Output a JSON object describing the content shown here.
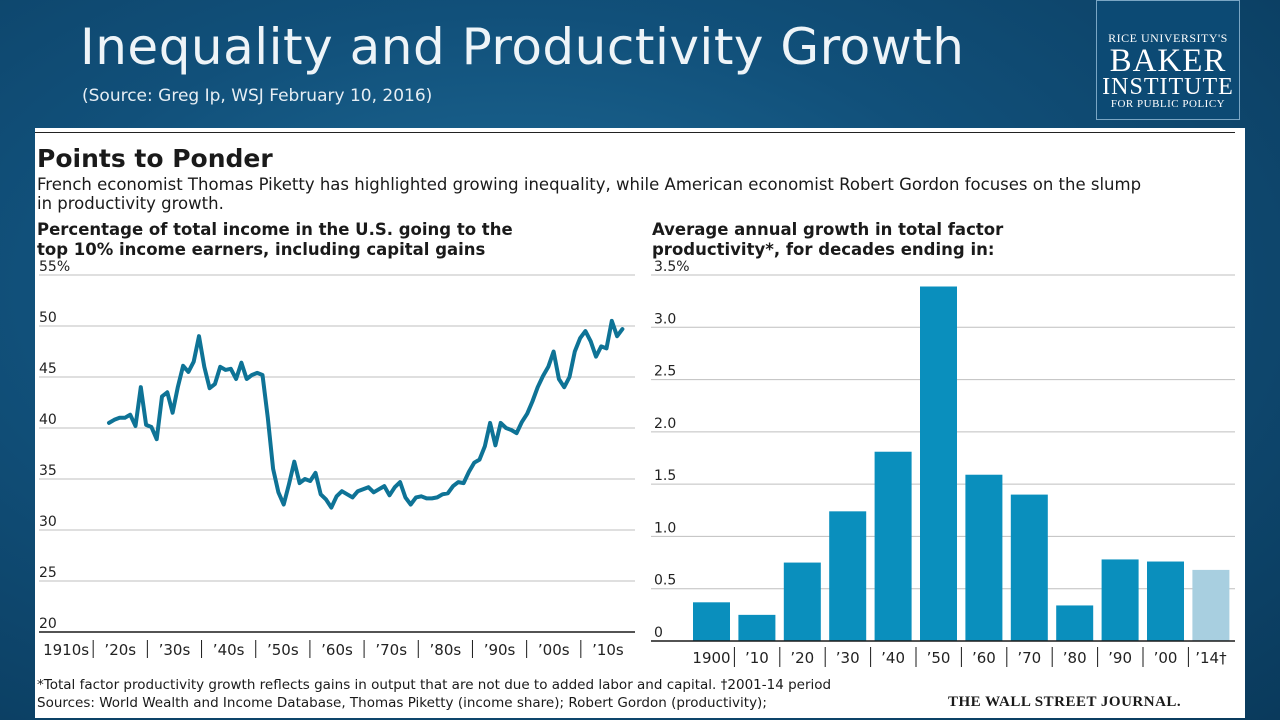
{
  "slide": {
    "title": "Inequality and Productivity Growth",
    "source": "(Source: Greg Ip, WSJ February 10, 2016)"
  },
  "logo": {
    "line1": "RICE UNIVERSITY'S",
    "line2": "BAKER",
    "line3": "INSTITUTE",
    "line4": "FOR PUBLIC POLICY"
  },
  "panel": {
    "heading": "Points to Ponder",
    "description": "French economist Thomas Piketty has highlighted growing inequality, while American economist Robert Gordon focuses on the slump in productivity growth.",
    "footnote": "*Total factor productivity growth reflects gains in output that are not due to added labor and capital.  †2001-14 period",
    "sources": "Sources: World Wealth and Income Database, Thomas Piketty (income share); Robert Gordon (productivity);",
    "publisher": "THE WALL STREET JOURNAL."
  },
  "colors": {
    "line": "#0e7396",
    "bar": "#0a8fbd",
    "bar_partial": "#a8cfe0",
    "grid": "#bfbfbf",
    "axis": "#1a1a1a"
  },
  "chart_data": [
    {
      "type": "line",
      "title_lines": [
        "Percentage of total income in the U.S. going to the",
        "top 10% income earners, including capital gains"
      ],
      "ylim": [
        20,
        55
      ],
      "ytick_values": [
        20,
        25,
        30,
        35,
        40,
        45,
        50,
        55
      ],
      "ytick_labels": [
        "20",
        "25",
        "30",
        "35",
        "40",
        "45",
        "50",
        "55%"
      ],
      "xlim": [
        1910,
        2016
      ],
      "xtick_labels": [
        "1910s",
        "’20s",
        "’30s",
        "’40s",
        "’50s",
        "’60s",
        "’70s",
        "’80s",
        "’90s",
        "’00s",
        "’10s"
      ],
      "grid": true,
      "series": [
        {
          "x": [
            1917,
            1918,
            1919,
            1920,
            1921,
            1922,
            1923,
            1924,
            1925,
            1926,
            1927,
            1928,
            1929,
            1930,
            1931,
            1932,
            1933,
            1934,
            1935,
            1936,
            1937,
            1938,
            1939,
            1940,
            1941,
            1942,
            1943,
            1944,
            1945,
            1946,
            1947,
            1948,
            1949,
            1950,
            1951,
            1952,
            1953,
            1954,
            1955,
            1956,
            1957,
            1958,
            1959,
            1960,
            1961,
            1962,
            1963,
            1964,
            1965,
            1966,
            1967,
            1968,
            1969,
            1970,
            1971,
            1972,
            1973,
            1974,
            1975,
            1976,
            1977,
            1978,
            1979,
            1980,
            1981,
            1982,
            1983,
            1984,
            1985,
            1986,
            1987,
            1988,
            1989,
            1990,
            1991,
            1992,
            1993,
            1994,
            1995,
            1996,
            1997,
            1998,
            1999,
            2000,
            2001,
            2002,
            2003,
            2004,
            2005,
            2006,
            2007,
            2008,
            2009,
            2010,
            2011,
            2012,
            2013,
            2014
          ],
          "y": [
            40.5,
            40.8,
            41.0,
            41.0,
            41.3,
            40.2,
            44.0,
            40.3,
            40.1,
            38.9,
            43.1,
            43.5,
            41.5,
            44.0,
            46.1,
            45.5,
            46.5,
            49.0,
            46.0,
            43.9,
            44.3,
            46.0,
            45.7,
            45.8,
            44.8,
            46.4,
            44.8,
            45.2,
            45.4,
            45.2,
            41.0,
            36.0,
            33.7,
            32.5,
            34.5,
            36.7,
            34.6,
            35.0,
            34.8,
            35.6,
            33.5,
            33.0,
            32.2,
            33.3,
            33.8,
            33.5,
            33.2,
            33.8,
            34.0,
            34.2,
            33.7,
            34.0,
            34.3,
            33.4,
            34.2,
            34.7,
            33.2,
            32.5,
            33.2,
            33.3,
            33.1,
            33.1,
            33.2,
            33.5,
            33.6,
            34.3,
            34.7,
            34.6,
            35.7,
            36.6,
            36.9,
            38.2,
            40.5,
            38.3,
            40.5,
            40.0,
            39.8,
            39.5,
            40.6,
            41.4,
            42.6,
            44.0,
            45.1,
            46.0,
            47.5,
            44.8,
            44.0,
            45.0,
            47.5,
            48.8,
            49.5,
            48.5,
            47.0,
            48.0,
            47.8,
            50.5,
            49.0,
            49.7
          ]
        }
      ]
    },
    {
      "type": "bar",
      "title_lines": [
        "Average annual growth in total factor",
        "productivity*, for decades ending in:"
      ],
      "ylim": [
        0,
        3.5
      ],
      "ytick_values": [
        0,
        0.5,
        1.0,
        1.5,
        2.0,
        2.5,
        3.0,
        3.5
      ],
      "ytick_labels": [
        "0",
        "0.5",
        "1.0",
        "1.5",
        "2.0",
        "2.5",
        "3.0",
        "3.5%"
      ],
      "categories": [
        "1900",
        "’10",
        "’20",
        "’30",
        "’40",
        "’50",
        "’60",
        "’70",
        "’80",
        "’90",
        "’00",
        "’14†"
      ],
      "values": [
        0.37,
        0.25,
        0.75,
        1.24,
        1.81,
        3.39,
        1.59,
        1.4,
        0.34,
        0.78,
        0.76,
        0.68
      ],
      "grid": true
    }
  ]
}
